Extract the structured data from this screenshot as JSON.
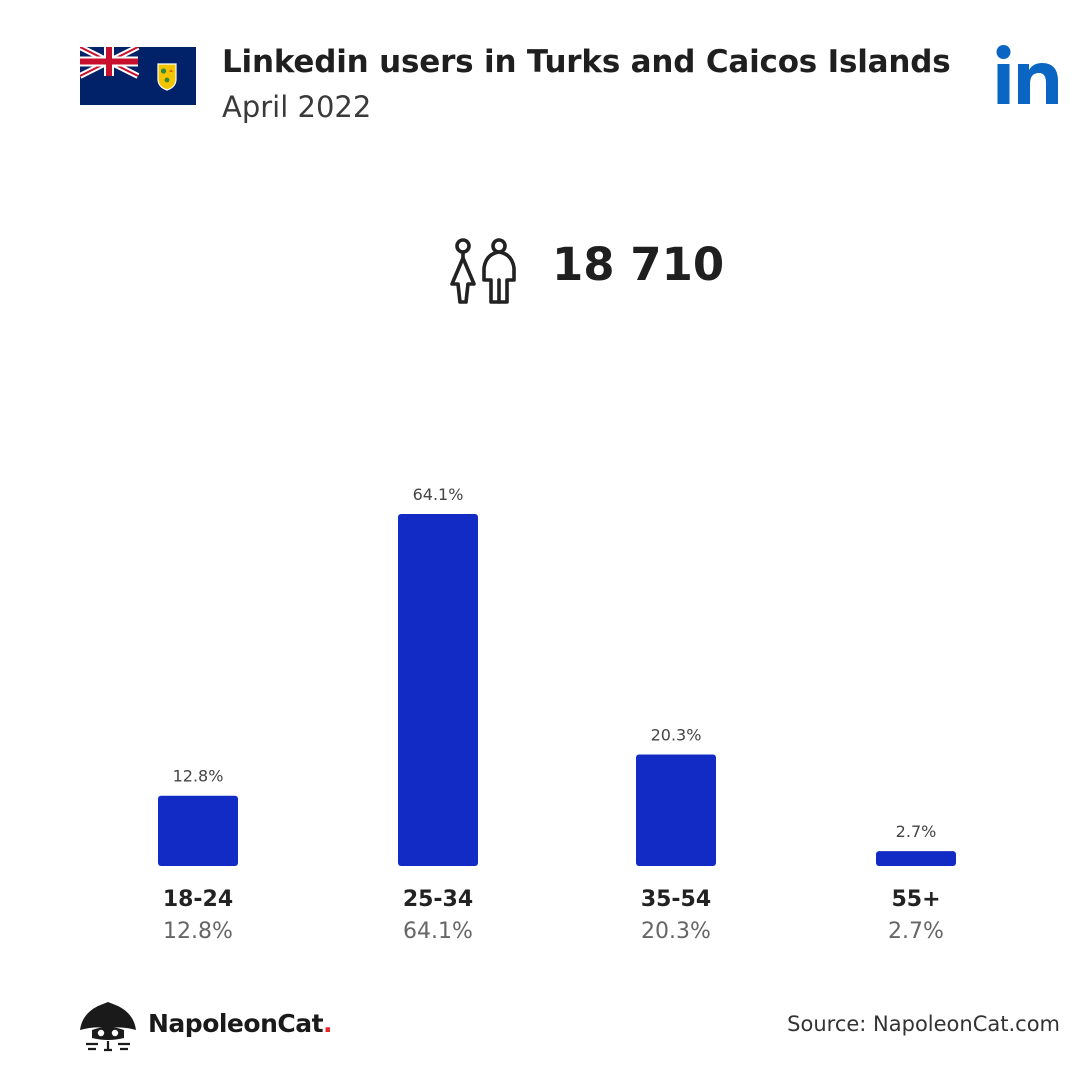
{
  "header": {
    "title": "Linkedin users in Turks and Caicos Islands",
    "subtitle": "April 2022",
    "linkedin_logo_text": "in"
  },
  "summary": {
    "total_users": "18 710"
  },
  "chart_data": {
    "type": "bar",
    "title": "",
    "categories": [
      "18-24",
      "25-34",
      "35-54",
      "55+"
    ],
    "values": [
      12.8,
      64.1,
      20.3,
      2.7
    ],
    "value_labels": [
      "12.8%",
      "64.1%",
      "20.3%",
      "2.7%"
    ],
    "xlabel": "",
    "ylabel": "",
    "ylim": [
      0,
      64.1
    ],
    "grid": false,
    "bar_color": "#122BC5"
  },
  "footer": {
    "brand_name": "NapoleonCat",
    "brand_dot": ".",
    "source": "Source: NapoleonCat.com"
  },
  "colors": {
    "bar": "#122BC5",
    "linkedin_blue": "#0A66C2",
    "flag_blue": "#012169",
    "flag_red": "#C8102E",
    "brand_red": "#E8232A"
  },
  "icons": {
    "flag": "flag-turks-and-caicos-icon",
    "linkedin": "linkedin-logo-icon",
    "users": "users-icon",
    "brand": "napoleoncat-logo-icon"
  }
}
